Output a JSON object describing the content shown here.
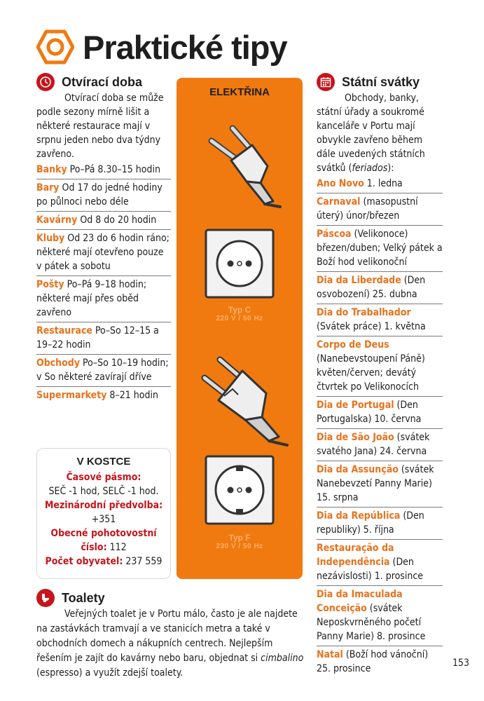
{
  "page": {
    "title": "Praktické tipy",
    "page_number": "153"
  },
  "opening_hours": {
    "title": "Otvírací doba",
    "intro": "Otvírací doba se může podle sezony mírně lišit a některé restaurace mají v srpnu jeden nebo dva týdny zavřeno.",
    "items": [
      {
        "label": "Banky",
        "text": " Po–Pá 8.30–15 hodin"
      },
      {
        "label": "Bary",
        "text": " Od 17 do jedné hodiny po půlnoci nebo déle"
      },
      {
        "label": "Kavárny",
        "text": " Od 8 do 20 hodin"
      },
      {
        "label": "Kluby",
        "text": " Od 23 do 6 hodin ráno; některé mají otevřeno pouze v pátek a sobotu"
      },
      {
        "label": "Pošty",
        "text": " Po–Pá 9–18 hodin; některé mají přes oběd zavřeno"
      },
      {
        "label": "Restaurace",
        "text": " Po–So 12–15 a 19–22 hodin"
      },
      {
        "label": "Obchody",
        "text": " Po–So 10–19 hodin; v So některé zavírají dříve"
      },
      {
        "label": "Supermarkety",
        "text": " 8–21 hodin"
      }
    ]
  },
  "summary_box": {
    "title": "V KOSTCE",
    "timezone_label": "Časové pásmo:",
    "timezone_value": "SEČ -1 hod, SELČ -1 hod.",
    "dialcode_label": "Mezinárodní předvolba:",
    "dialcode_value": "+351",
    "emergency_label": "Obecné pohotovostní číslo:",
    "emergency_value": " 112",
    "population_label": "Počet obyvatel:",
    "population_value": " 237 559"
  },
  "electricity": {
    "title": "ELEKTŘINA",
    "socket_c_type": "Typ C",
    "socket_c_spec": "220 V / 50 Hz",
    "socket_f_type": "Typ F",
    "socket_f_spec": "230 V / 50 Hz"
  },
  "holidays": {
    "title": "Státní svátky",
    "intro_before": "Obchody, banky, státní úřady a soukromé kanceláře v Portu mají obvykle zavřeno během dále uvedených státních svátků (",
    "intro_italic": "feriados",
    "intro_after": "):",
    "items": [
      {
        "label": "Ano Novo",
        "text": " 1. ledna"
      },
      {
        "label": "Carnaval",
        "text": " (masopustní úterý) únor/březen"
      },
      {
        "label": "Páscoa",
        "text": " (Velikonoce) březen/duben; Velký pátek a Boží hod velikonoční"
      },
      {
        "label": "Dia da Liberdade",
        "text": " (Den osvobození) 25. dubna"
      },
      {
        "label": "Dia do Trabalhador",
        "text": " (Svátek práce) 1. května"
      },
      {
        "label": "Corpo de Deus",
        "text": " (Nanebevstoupení Páně) květen/červen; devátý čtvrtek po Velikonocích"
      },
      {
        "label": "Dia de Portugal",
        "text": " (Den Portugalska) 10. června"
      },
      {
        "label": "Dia de São João",
        "text": " (svátek svatého Jana) 24. června"
      },
      {
        "label": "Dia da Assunção",
        "text": " (svátek Nanebevzetí Panny Marie) 15. srpna"
      },
      {
        "label": "Dia da República",
        "text": " (Den republiky) 5. října"
      },
      {
        "label": "Restauração da Independência",
        "text": " (Den nezávislosti) 1. prosince"
      },
      {
        "label": "Dia da Imaculada Conceição",
        "text": " (svátek Neposkvrněného početí Panny Marie) 8. prosince"
      },
      {
        "label": "Natal",
        "text": " (Boží hod vánoční) 25. prosince"
      }
    ]
  },
  "toilets": {
    "title": "Toalety",
    "text_before": "Veřejných toalet je v Portu málo, často je ale najdete na zastávkách tramvají a ve stanicích metra a také v obchodních domech a nákupních centrech. Nejlepším řešením je zajít do kavárny nebo baru, objednat si ",
    "text_italic": "cimbalino",
    "text_after": " (espresso) a využít zdejší toalety."
  },
  "colors": {
    "accent_orange": "#e8721c",
    "panel_orange": "#f07a10",
    "icon_red": "#c4161c"
  },
  "icons": [
    "hexagon-nut-icon",
    "clock-icon",
    "calendar-icon",
    "toilet-icon",
    "plug-c-icon",
    "socket-c-icon",
    "plug-f-icon",
    "socket-f-icon"
  ]
}
